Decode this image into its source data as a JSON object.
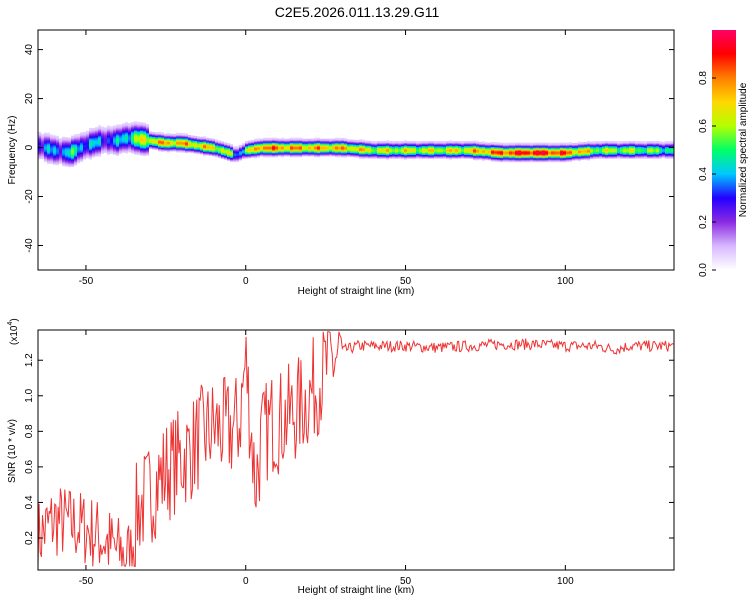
{
  "title": "C2E5.2026.011.13.29.G11",
  "chart_data": [
    {
      "type": "heatmap",
      "title": "C2E5.2026.011.13.29.G11",
      "xlabel": "Height of straight line (km)",
      "ylabel": "Frequency (Hz)",
      "xlim": [
        -65,
        134
      ],
      "ylim": [
        -50,
        48
      ],
      "xticks": [
        -50,
        0,
        50,
        100
      ],
      "yticks": [
        -40,
        -20,
        0,
        20,
        40
      ],
      "colorbar": {
        "label": "Normalized spectral amplitude",
        "range": [
          0,
          1
        ],
        "ticks": [
          0.0,
          0.2,
          0.4,
          0.6,
          0.8
        ],
        "colormap": [
          "#ffffff",
          "#d8b8ff",
          "#8a2be2",
          "#2400ff",
          "#00c8ff",
          "#00ff66",
          "#b4ff00",
          "#ffd700",
          "#ff7f00",
          "#ff0000",
          "#ff0066"
        ]
      },
      "ridge": {
        "heights_km": [
          -65,
          -60,
          -55,
          -50,
          -45,
          -40,
          -38,
          -35,
          -30,
          -25,
          -20,
          -15,
          -10,
          -5,
          -3,
          0,
          5,
          10,
          20,
          30,
          40,
          50,
          60,
          70,
          80,
          90,
          100,
          110,
          120,
          134
        ],
        "center_freq_hz": [
          1,
          -1,
          -2,
          1,
          3,
          3,
          4,
          4,
          3,
          2,
          2,
          1,
          0,
          -2,
          -3,
          -1,
          0,
          0,
          0,
          0,
          -1,
          -1,
          -1,
          -1,
          -2,
          -2,
          -2,
          -1,
          -1,
          -1
        ],
        "peak_amplitude": [
          0.35,
          0.35,
          0.45,
          0.4,
          0.35,
          0.35,
          0.45,
          0.55,
          0.7,
          0.75,
          0.75,
          0.7,
          0.7,
          0.6,
          0.35,
          0.55,
          0.85,
          0.8,
          0.75,
          0.75,
          0.65,
          0.65,
          0.65,
          0.7,
          0.85,
          0.95,
          0.85,
          0.6,
          0.6,
          0.5
        ]
      }
    },
    {
      "type": "line",
      "xlabel": "Height of straight line (km)",
      "ylabel": "SNR (10 * v/v)",
      "yscale_label": "(x10",
      "yscale_exp": "4",
      "xlim": [
        -65,
        134
      ],
      "ylim": [
        0.02,
        1.37
      ],
      "xticks": [
        -50,
        0,
        50,
        100
      ],
      "yticks": [
        0.2,
        0.4,
        0.6,
        0.8,
        1.0,
        1.2
      ],
      "series": [
        {
          "name": "SNR",
          "color": "#ee3333",
          "x": [
            -65,
            -60,
            -55,
            -50,
            -45,
            -40,
            -36,
            -34,
            -30,
            -25,
            -20,
            -17,
            -15,
            -10,
            -5,
            -2,
            0,
            3,
            5,
            8,
            10,
            15,
            20,
            25,
            30,
            35,
            40,
            50,
            60,
            70,
            80,
            90,
            100,
            110,
            115,
            120,
            134
          ],
          "y": [
            0.2,
            0.3,
            0.28,
            0.25,
            0.2,
            0.12,
            0.1,
            0.35,
            0.45,
            0.58,
            0.65,
            0.7,
            0.75,
            0.82,
            0.8,
            0.85,
            1.2,
            0.5,
            0.75,
            0.85,
            0.85,
            0.9,
            1.0,
            1.15,
            1.25,
            1.28,
            1.28,
            1.28,
            1.27,
            1.28,
            1.29,
            1.29,
            1.28,
            1.28,
            1.26,
            1.28,
            1.28
          ]
        }
      ]
    }
  ]
}
